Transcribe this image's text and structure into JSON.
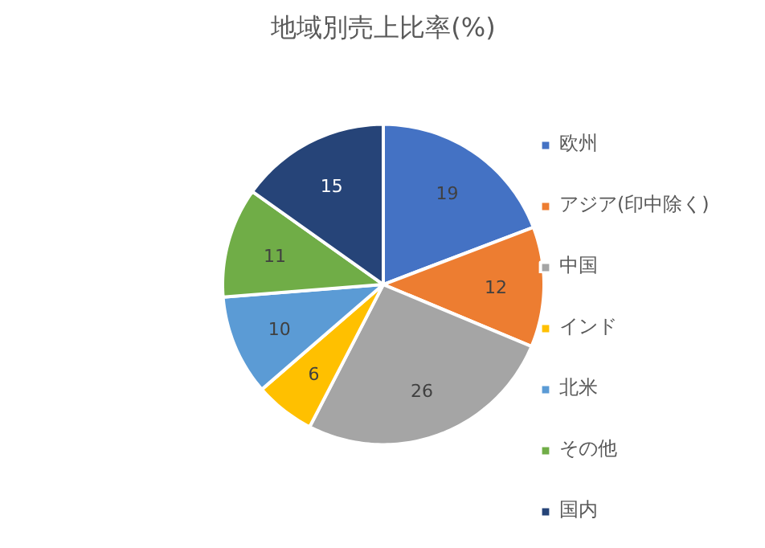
{
  "chart_data": {
    "type": "pie",
    "title": "地域別売上比率(%)",
    "categories": [
      "欧州",
      "アジア(印中除く)",
      "中国",
      "インド",
      "北米",
      "その他",
      "国内"
    ],
    "values": [
      19,
      12,
      26,
      6,
      10,
      11,
      15
    ],
    "colors": [
      "#4472c4",
      "#ed7d31",
      "#a5a5a5",
      "#ffc000",
      "#5b9bd5",
      "#70ad47",
      "#264478"
    ],
    "data_labels": true,
    "legend": "right"
  }
}
